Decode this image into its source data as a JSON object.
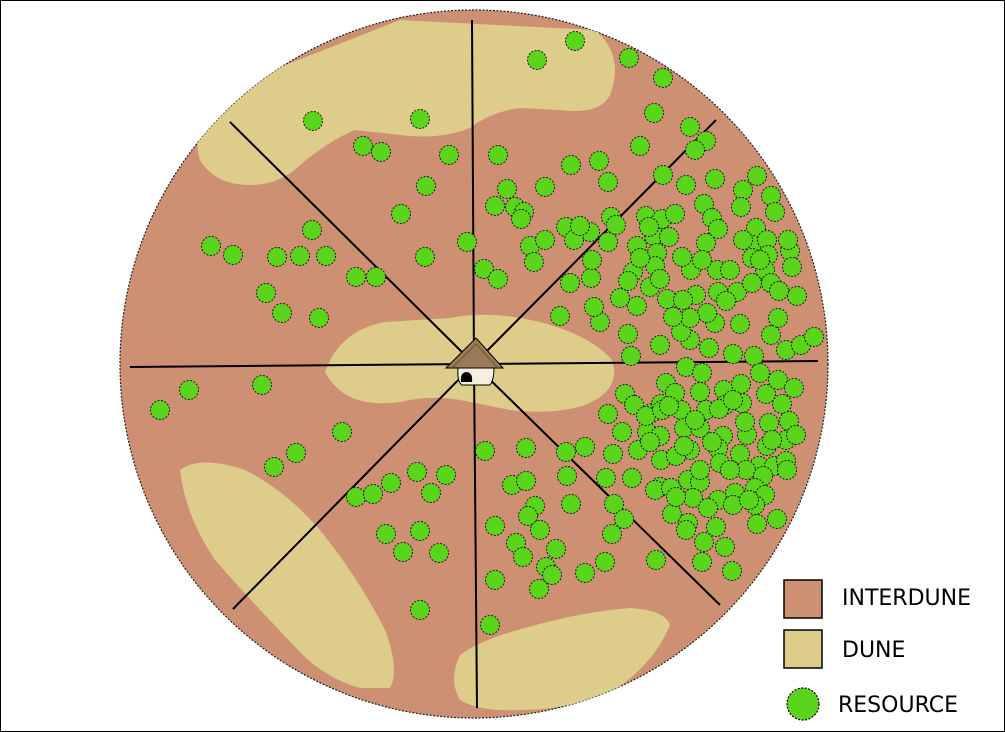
{
  "colors": {
    "interdune": "#cd9072",
    "dune": "#ddcc8a",
    "resource": "#5bd51b",
    "outline": "#000000",
    "background": "#ffffff"
  },
  "legend": {
    "interdune_label": "INTERDUNE",
    "dune_label": "DUNE",
    "resource_label": "RESOURCE"
  },
  "icons": {
    "hut": "hut-icon"
  },
  "sectors": 8,
  "resource_count": 270
}
